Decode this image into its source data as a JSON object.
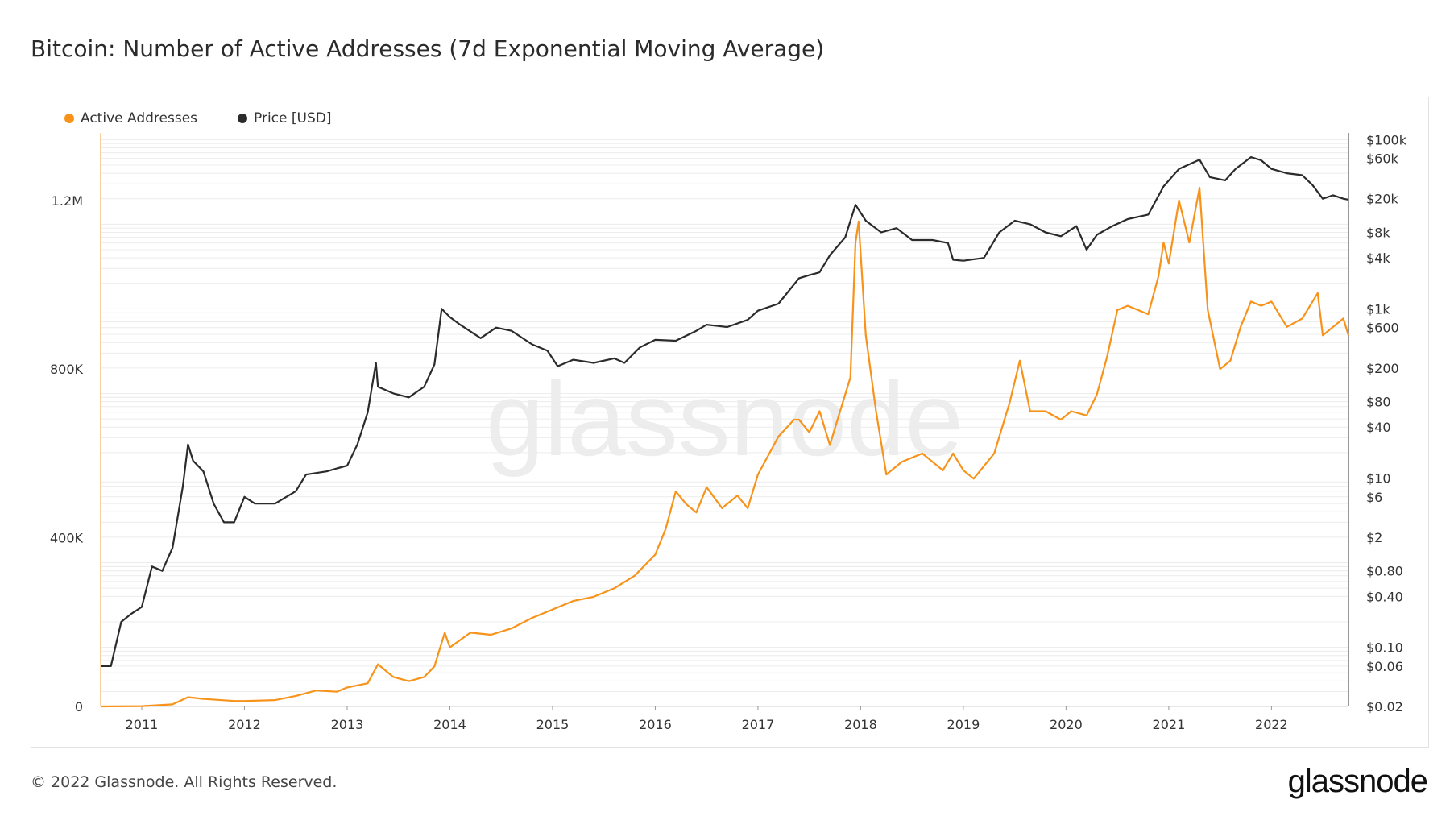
{
  "title": "Bitcoin: Number of Active Addresses (7d Exponential Moving Average)",
  "footer": "© 2022 Glassnode. All Rights Reserved.",
  "brand": "glassnode",
  "watermark": "glassnode",
  "colors": {
    "active": "#f7931a",
    "price": "#2b2b2b",
    "grid": "#ececec",
    "axis": "#cfcfcf"
  },
  "chart_data": {
    "type": "line",
    "x_axis": {
      "ticks": [
        "2011",
        "2012",
        "2013",
        "2014",
        "2015",
        "2016",
        "2017",
        "2018",
        "2019",
        "2020",
        "2021",
        "2022"
      ],
      "range": [
        2010.6,
        2022.75
      ]
    },
    "y_left": {
      "ticks": [
        "0",
        "400K",
        "800K",
        "1.2M"
      ],
      "tick_values": [
        0,
        400000,
        800000,
        1200000
      ],
      "range": [
        0,
        1360000
      ]
    },
    "y_right": {
      "scale": "log",
      "ticks": [
        "$0.02",
        "$0.06",
        "$0.10",
        "$0.40",
        "$0.80",
        "$2",
        "$6",
        "$10",
        "$40",
        "$80",
        "$200",
        "$600",
        "$1k",
        "$4k",
        "$8k",
        "$20k",
        "$60k",
        "$100k"
      ],
      "tick_values": [
        0.02,
        0.06,
        0.1,
        0.4,
        0.8,
        2,
        6,
        10,
        40,
        80,
        200,
        600,
        1000,
        4000,
        8000,
        20000,
        60000,
        100000
      ],
      "range": [
        0.02,
        120000
      ]
    },
    "legend_position": "top-left",
    "series": [
      {
        "name": "Active Addresses",
        "axis": "left",
        "color": "#f7931a",
        "points": [
          [
            2010.6,
            0
          ],
          [
            2011.0,
            800
          ],
          [
            2011.3,
            5000
          ],
          [
            2011.45,
            22000
          ],
          [
            2011.6,
            18000
          ],
          [
            2011.9,
            13000
          ],
          [
            2012.0,
            13000
          ],
          [
            2012.3,
            15000
          ],
          [
            2012.5,
            25000
          ],
          [
            2012.7,
            38000
          ],
          [
            2012.9,
            35000
          ],
          [
            2013.0,
            45000
          ],
          [
            2013.2,
            55000
          ],
          [
            2013.3,
            100000
          ],
          [
            2013.45,
            70000
          ],
          [
            2013.6,
            60000
          ],
          [
            2013.75,
            70000
          ],
          [
            2013.85,
            95000
          ],
          [
            2013.95,
            175000
          ],
          [
            2014.0,
            140000
          ],
          [
            2014.2,
            175000
          ],
          [
            2014.4,
            170000
          ],
          [
            2014.6,
            185000
          ],
          [
            2014.8,
            210000
          ],
          [
            2015.0,
            230000
          ],
          [
            2015.2,
            250000
          ],
          [
            2015.4,
            260000
          ],
          [
            2015.6,
            280000
          ],
          [
            2015.8,
            310000
          ],
          [
            2016.0,
            360000
          ],
          [
            2016.1,
            420000
          ],
          [
            2016.2,
            510000
          ],
          [
            2016.3,
            480000
          ],
          [
            2016.4,
            460000
          ],
          [
            2016.5,
            520000
          ],
          [
            2016.65,
            470000
          ],
          [
            2016.8,
            500000
          ],
          [
            2016.9,
            470000
          ],
          [
            2017.0,
            550000
          ],
          [
            2017.2,
            640000
          ],
          [
            2017.35,
            680000
          ],
          [
            2017.4,
            680000
          ],
          [
            2017.5,
            650000
          ],
          [
            2017.6,
            700000
          ],
          [
            2017.7,
            620000
          ],
          [
            2017.8,
            700000
          ],
          [
            2017.9,
            780000
          ],
          [
            2017.95,
            1100000
          ],
          [
            2017.98,
            1150000
          ],
          [
            2018.05,
            880000
          ],
          [
            2018.15,
            700000
          ],
          [
            2018.25,
            550000
          ],
          [
            2018.4,
            580000
          ],
          [
            2018.6,
            600000
          ],
          [
            2018.8,
            560000
          ],
          [
            2018.9,
            600000
          ],
          [
            2019.0,
            560000
          ],
          [
            2019.1,
            540000
          ],
          [
            2019.3,
            600000
          ],
          [
            2019.45,
            720000
          ],
          [
            2019.55,
            820000
          ],
          [
            2019.65,
            700000
          ],
          [
            2019.8,
            700000
          ],
          [
            2019.95,
            680000
          ],
          [
            2020.05,
            700000
          ],
          [
            2020.2,
            690000
          ],
          [
            2020.3,
            740000
          ],
          [
            2020.4,
            830000
          ],
          [
            2020.5,
            940000
          ],
          [
            2020.6,
            950000
          ],
          [
            2020.8,
            930000
          ],
          [
            2020.9,
            1020000
          ],
          [
            2020.95,
            1100000
          ],
          [
            2021.0,
            1050000
          ],
          [
            2021.1,
            1200000
          ],
          [
            2021.2,
            1100000
          ],
          [
            2021.3,
            1230000
          ],
          [
            2021.38,
            940000
          ],
          [
            2021.5,
            800000
          ],
          [
            2021.6,
            820000
          ],
          [
            2021.7,
            900000
          ],
          [
            2021.8,
            960000
          ],
          [
            2021.9,
            950000
          ],
          [
            2022.0,
            960000
          ],
          [
            2022.15,
            900000
          ],
          [
            2022.3,
            920000
          ],
          [
            2022.45,
            980000
          ],
          [
            2022.5,
            880000
          ],
          [
            2022.6,
            900000
          ],
          [
            2022.7,
            920000
          ],
          [
            2022.75,
            880000
          ]
        ]
      },
      {
        "name": "Price [USD]",
        "axis": "right",
        "color": "#2b2b2b",
        "points": [
          [
            2010.6,
            0.06
          ],
          [
            2010.7,
            0.06
          ],
          [
            2010.8,
            0.2
          ],
          [
            2010.9,
            0.25
          ],
          [
            2011.0,
            0.3
          ],
          [
            2011.1,
            0.9
          ],
          [
            2011.2,
            0.8
          ],
          [
            2011.3,
            1.5
          ],
          [
            2011.4,
            8
          ],
          [
            2011.45,
            25
          ],
          [
            2011.5,
            16
          ],
          [
            2011.6,
            12
          ],
          [
            2011.7,
            5
          ],
          [
            2011.8,
            3
          ],
          [
            2011.9,
            3
          ],
          [
            2012.0,
            6
          ],
          [
            2012.1,
            5
          ],
          [
            2012.3,
            5
          ],
          [
            2012.5,
            7
          ],
          [
            2012.6,
            11
          ],
          [
            2012.8,
            12
          ],
          [
            2012.9,
            13
          ],
          [
            2013.0,
            14
          ],
          [
            2013.1,
            25
          ],
          [
            2013.2,
            60
          ],
          [
            2013.28,
            230
          ],
          [
            2013.3,
            120
          ],
          [
            2013.45,
            100
          ],
          [
            2013.6,
            90
          ],
          [
            2013.75,
            120
          ],
          [
            2013.85,
            220
          ],
          [
            2013.92,
            1000
          ],
          [
            2014.0,
            800
          ],
          [
            2014.1,
            650
          ],
          [
            2014.3,
            450
          ],
          [
            2014.45,
            600
          ],
          [
            2014.6,
            550
          ],
          [
            2014.8,
            380
          ],
          [
            2014.95,
            320
          ],
          [
            2015.05,
            210
          ],
          [
            2015.2,
            250
          ],
          [
            2015.4,
            230
          ],
          [
            2015.6,
            260
          ],
          [
            2015.7,
            230
          ],
          [
            2015.85,
            350
          ],
          [
            2016.0,
            430
          ],
          [
            2016.2,
            420
          ],
          [
            2016.4,
            550
          ],
          [
            2016.5,
            650
          ],
          [
            2016.7,
            610
          ],
          [
            2016.9,
            740
          ],
          [
            2017.0,
            950
          ],
          [
            2017.2,
            1150
          ],
          [
            2017.4,
            2300
          ],
          [
            2017.5,
            2500
          ],
          [
            2017.6,
            2700
          ],
          [
            2017.7,
            4300
          ],
          [
            2017.85,
            7000
          ],
          [
            2017.95,
            17000
          ],
          [
            2018.05,
            11000
          ],
          [
            2018.2,
            8000
          ],
          [
            2018.35,
            9000
          ],
          [
            2018.5,
            6500
          ],
          [
            2018.7,
            6500
          ],
          [
            2018.85,
            6000
          ],
          [
            2018.9,
            3800
          ],
          [
            2019.0,
            3700
          ],
          [
            2019.2,
            4000
          ],
          [
            2019.35,
            8000
          ],
          [
            2019.5,
            11000
          ],
          [
            2019.65,
            10000
          ],
          [
            2019.8,
            8000
          ],
          [
            2019.95,
            7200
          ],
          [
            2020.1,
            9500
          ],
          [
            2020.2,
            5000
          ],
          [
            2020.3,
            7500
          ],
          [
            2020.45,
            9500
          ],
          [
            2020.6,
            11500
          ],
          [
            2020.8,
            13000
          ],
          [
            2020.95,
            28000
          ],
          [
            2021.1,
            45000
          ],
          [
            2021.3,
            58000
          ],
          [
            2021.4,
            36000
          ],
          [
            2021.55,
            33000
          ],
          [
            2021.65,
            45000
          ],
          [
            2021.8,
            62000
          ],
          [
            2021.9,
            57000
          ],
          [
            2022.0,
            45000
          ],
          [
            2022.15,
            40000
          ],
          [
            2022.3,
            38000
          ],
          [
            2022.4,
            29000
          ],
          [
            2022.5,
            20000
          ],
          [
            2022.6,
            22000
          ],
          [
            2022.7,
            20000
          ],
          [
            2022.75,
            19500
          ]
        ]
      }
    ]
  }
}
